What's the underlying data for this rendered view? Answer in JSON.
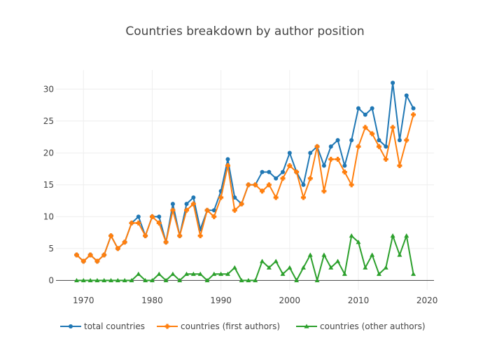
{
  "chart_data": {
    "type": "line",
    "title": "Countries breakdown by author position",
    "xlabel": "",
    "ylabel": "",
    "xlim": [
      1966,
      2021
    ],
    "ylim": [
      -1.5,
      33
    ],
    "x_ticks": [
      1970,
      1980,
      1990,
      2000,
      2010,
      2020
    ],
    "y_ticks": [
      0,
      5,
      10,
      15,
      20,
      25,
      30
    ],
    "grid": true,
    "legend_position": "bottom",
    "x": [
      1969,
      1970,
      1971,
      1972,
      1973,
      1974,
      1975,
      1976,
      1977,
      1978,
      1979,
      1980,
      1981,
      1982,
      1983,
      1984,
      1985,
      1986,
      1987,
      1988,
      1989,
      1990,
      1991,
      1992,
      1993,
      1994,
      1995,
      1996,
      1997,
      1998,
      1999,
      2000,
      2001,
      2002,
      2003,
      2004,
      2005,
      2006,
      2007,
      2008,
      2009,
      2010,
      2011,
      2012,
      2013,
      2014,
      2015,
      2016,
      2017,
      2018
    ],
    "series": [
      {
        "name": "total countries",
        "color": "#1f77b4",
        "marker": "circle",
        "values": [
          4,
          3,
          4,
          3,
          4,
          7,
          5,
          6,
          9,
          10,
          7,
          10,
          10,
          6,
          12,
          7,
          12,
          13,
          8,
          11,
          11,
          14,
          19,
          13,
          12,
          15,
          15,
          17,
          17,
          16,
          17,
          20,
          17,
          15,
          20,
          21,
          18,
          21,
          22,
          18,
          22,
          27,
          26,
          27,
          22,
          21,
          31,
          22,
          29,
          27
        ]
      },
      {
        "name": "countries (first authors)",
        "color": "#ff7f0e",
        "marker": "cross",
        "values": [
          4,
          3,
          4,
          3,
          4,
          7,
          5,
          6,
          9,
          9,
          7,
          10,
          9,
          6,
          11,
          7,
          11,
          12,
          7,
          11,
          10,
          13,
          18,
          11,
          12,
          15,
          15,
          14,
          15,
          13,
          16,
          18,
          17,
          13,
          16,
          21,
          14,
          19,
          19,
          17,
          15,
          21,
          24,
          23,
          21,
          19,
          24,
          18,
          22,
          26
        ]
      },
      {
        "name": "countries (other authors)",
        "color": "#2ca02c",
        "marker": "triangle",
        "values": [
          0,
          0,
          0,
          0,
          0,
          0,
          0,
          0,
          0,
          1,
          0,
          0,
          1,
          0,
          1,
          0,
          1,
          1,
          1,
          0,
          1,
          1,
          1,
          2,
          0,
          0,
          0,
          3,
          2,
          3,
          1,
          2,
          0,
          2,
          4,
          0,
          4,
          2,
          3,
          1,
          7,
          6,
          2,
          4,
          1,
          2,
          7,
          4,
          7,
          1
        ]
      }
    ]
  }
}
